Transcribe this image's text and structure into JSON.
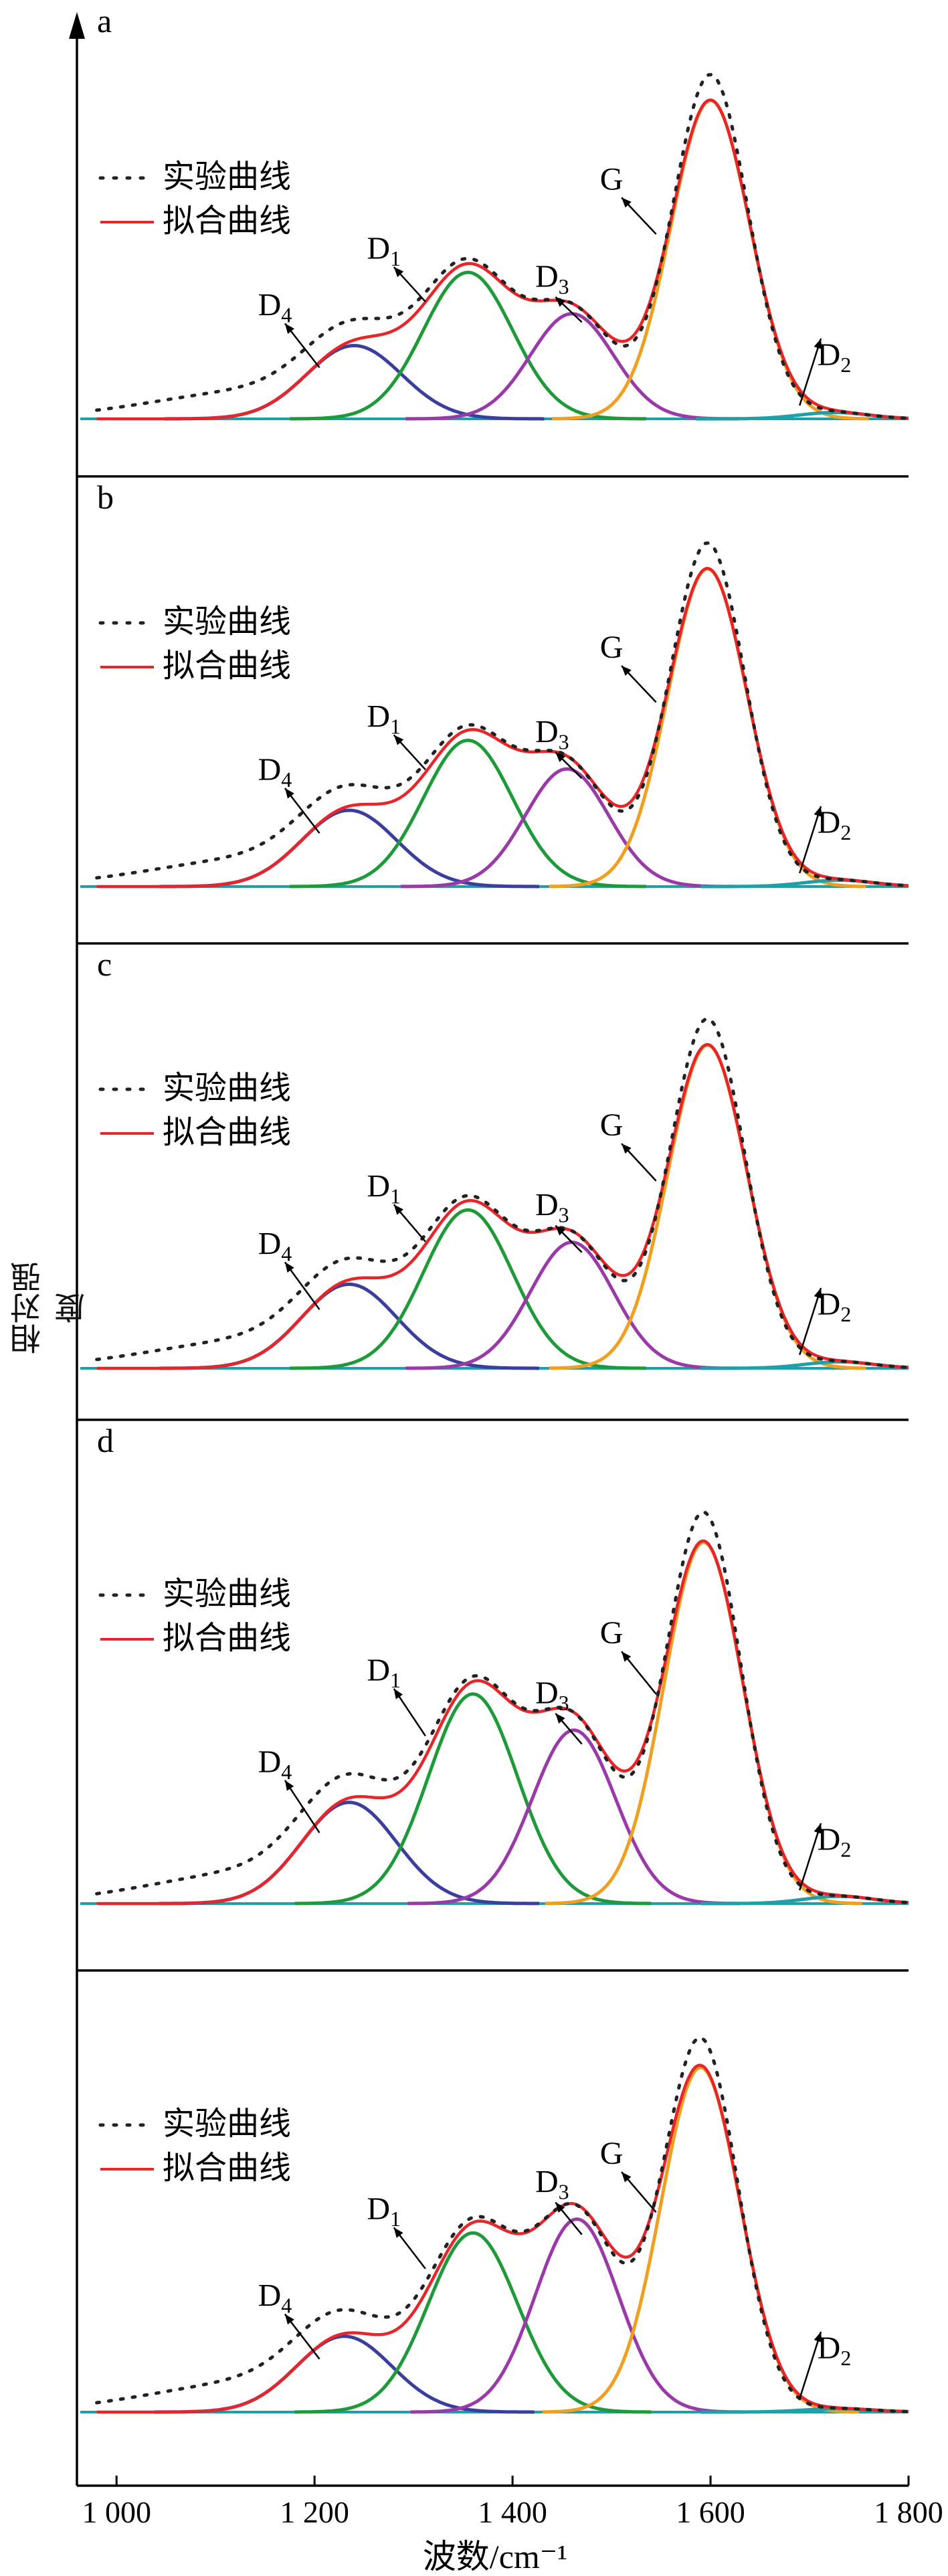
{
  "chart_data": {
    "type": "line",
    "xlabel": "波数/cm⁻¹",
    "ylabel": "相对强度",
    "xlim": [
      960,
      1800
    ],
    "xticks": [
      {
        "value": 1000,
        "label": "1 000"
      },
      {
        "value": 1200,
        "label": "1 200"
      },
      {
        "value": 1400,
        "label": "1 400"
      },
      {
        "value": 1600,
        "label": "1 600"
      },
      {
        "value": 1800,
        "label": "1 800"
      }
    ],
    "legend": {
      "experimental": "实验曲线",
      "fitted": "拟合曲线",
      "placement": "top-left"
    },
    "colors": {
      "experimental": "#222222",
      "fitted": "#e8262a",
      "D4": "#3a3f9e",
      "D1": "#1f9a3a",
      "D3": "#9a3aa8",
      "G": "#f0a020",
      "D2": "#1fa0a8",
      "baseline": "#1fa0a8"
    },
    "peak_labels": {
      "D4": "D",
      "D1": "D",
      "D3": "D",
      "G": "G",
      "D2": "D"
    },
    "peak_subscripts": {
      "D4": "4",
      "D1": "1",
      "D3": "3",
      "G": "",
      "D2": "2"
    },
    "panels": [
      {
        "label": "a",
        "peaks": [
          {
            "name": "D4",
            "center": 1240,
            "height": 0.23,
            "width": 48
          },
          {
            "name": "D1",
            "center": 1355,
            "height": 0.46,
            "width": 45
          },
          {
            "name": "D3",
            "center": 1460,
            "height": 0.33,
            "width": 42
          },
          {
            "name": "G",
            "center": 1600,
            "height": 1.0,
            "width": 40
          },
          {
            "name": "D2",
            "center": 1725,
            "height": 0.02,
            "width": 35
          }
        ]
      },
      {
        "label": "b",
        "peaks": [
          {
            "name": "D4",
            "center": 1235,
            "height": 0.24,
            "width": 48
          },
          {
            "name": "D1",
            "center": 1355,
            "height": 0.46,
            "width": 45
          },
          {
            "name": "D3",
            "center": 1455,
            "height": 0.37,
            "width": 42
          },
          {
            "name": "G",
            "center": 1597,
            "height": 1.0,
            "width": 40
          },
          {
            "name": "D2",
            "center": 1730,
            "height": 0.02,
            "width": 35
          }
        ]
      },
      {
        "label": "c",
        "peaks": [
          {
            "name": "D4",
            "center": 1235,
            "height": 0.26,
            "width": 48
          },
          {
            "name": "D1",
            "center": 1355,
            "height": 0.49,
            "width": 45
          },
          {
            "name": "D3",
            "center": 1460,
            "height": 0.39,
            "width": 42
          },
          {
            "name": "G",
            "center": 1597,
            "height": 1.0,
            "width": 40
          },
          {
            "name": "D2",
            "center": 1730,
            "height": 0.02,
            "width": 35
          }
        ]
      },
      {
        "label": "d",
        "peaks": [
          {
            "name": "D4",
            "center": 1235,
            "height": 0.28,
            "width": 48
          },
          {
            "name": "D1",
            "center": 1360,
            "height": 0.58,
            "width": 45
          },
          {
            "name": "D3",
            "center": 1462,
            "height": 0.48,
            "width": 42
          },
          {
            "name": "G",
            "center": 1593,
            "height": 1.0,
            "width": 40
          },
          {
            "name": "D2",
            "center": 1730,
            "height": 0.02,
            "width": 35
          }
        ]
      },
      {
        "label": "",
        "peaks": [
          {
            "name": "D4",
            "center": 1230,
            "height": 0.22,
            "width": 48
          },
          {
            "name": "D1",
            "center": 1360,
            "height": 0.52,
            "width": 45
          },
          {
            "name": "D3",
            "center": 1465,
            "height": 0.56,
            "width": 42
          },
          {
            "name": "G",
            "center": 1590,
            "height": 1.0,
            "width": 40
          },
          {
            "name": "D2",
            "center": 1730,
            "height": 0.01,
            "width": 35
          }
        ]
      }
    ]
  }
}
